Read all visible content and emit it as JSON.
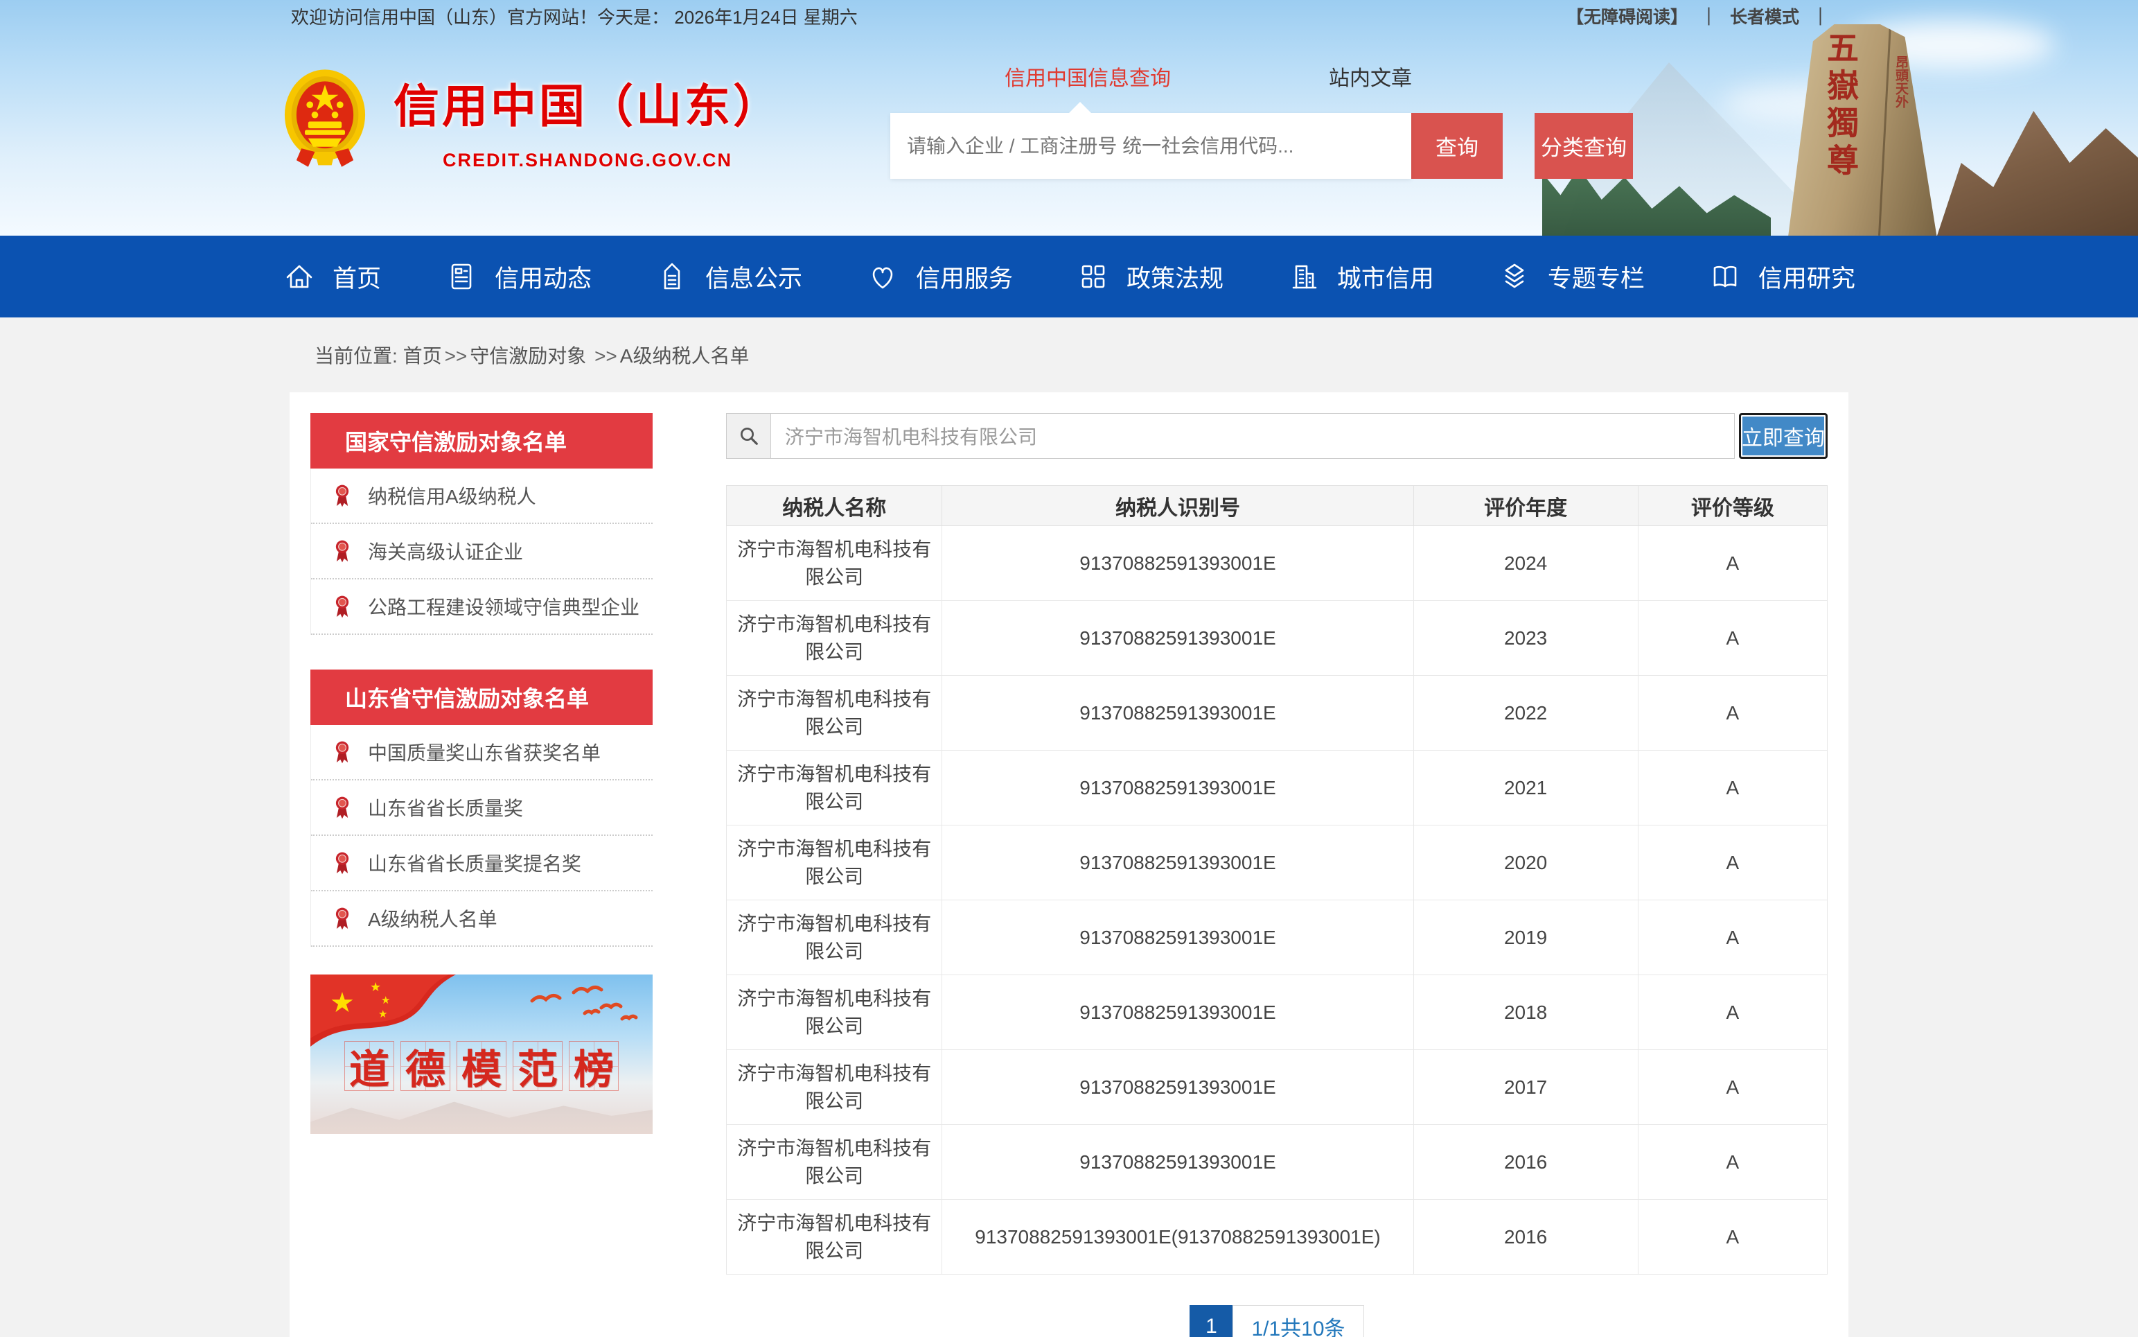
{
  "topbar": {
    "welcome": "欢迎访问信用中国（山东）官方网站！今天是：",
    "date": "2026年1月24日 星期六",
    "accessibility": "【无障碍阅读】",
    "sep1": "｜",
    "elder_mode": "长者模式",
    "sep2": "｜"
  },
  "header": {
    "site_title": "信用中国（山东）",
    "site_domain": "CREDIT.SHANDONG.GOV.CN",
    "tabs": [
      {
        "label": "信用中国信息查询",
        "active": true
      },
      {
        "label": "站内文章",
        "active": false
      }
    ],
    "search_placeholder": "请输入企业 / 工商注册号 统一社会信用代码...",
    "query_button": "查询",
    "classify_button": "分类查询",
    "stone_text": "五嶽獨尊",
    "stone_text_small": "昂頭天外"
  },
  "nav": {
    "items": [
      {
        "key": "home",
        "label": "首页",
        "icon": "home-icon"
      },
      {
        "key": "credit-news",
        "label": "信用动态",
        "icon": "news-card-icon"
      },
      {
        "key": "info-publicity",
        "label": "信息公示",
        "icon": "document-pen-icon"
      },
      {
        "key": "credit-service",
        "label": "信用服务",
        "icon": "heart-icon"
      },
      {
        "key": "policy",
        "label": "政策法规",
        "icon": "grid-icon"
      },
      {
        "key": "city-credit",
        "label": "城市信用",
        "icon": "building-icon"
      },
      {
        "key": "special-columns",
        "label": "专题专栏",
        "icon": "layers-icon"
      },
      {
        "key": "credit-research",
        "label": "信用研究",
        "icon": "open-book-icon"
      }
    ]
  },
  "breadcrumb": {
    "prefix": "当前位置:",
    "home": "首页",
    "sep1": ">>",
    "section": "守信激励对象",
    "sep2": " >>",
    "current": "A级纳税人名单"
  },
  "sidebar": {
    "panels": [
      {
        "title": "国家守信激励对象名单",
        "items": [
          "纳税信用A级纳税人",
          "海关高级认证企业",
          "公路工程建设领域守信典型企业"
        ]
      },
      {
        "title": "山东省守信激励对象名单",
        "items": [
          "中国质量奖山东省获奖名单",
          "山东省省长质量奖",
          "山东省省长质量奖提名奖",
          "A级纳税人名单"
        ]
      }
    ],
    "banner_text": "道德模范榜"
  },
  "main": {
    "search_value": "济宁市海智机电科技有限公司",
    "search_button": "立即查询",
    "table": {
      "headers": [
        "纳税人名称",
        "纳税人识别号",
        "评价年度",
        "评价等级"
      ],
      "rows": [
        [
          "济宁市海智机电科技有限公司",
          "91370882591393001E",
          "2024",
          "A"
        ],
        [
          "济宁市海智机电科技有限公司",
          "91370882591393001E",
          "2023",
          "A"
        ],
        [
          "济宁市海智机电科技有限公司",
          "91370882591393001E",
          "2022",
          "A"
        ],
        [
          "济宁市海智机电科技有限公司",
          "91370882591393001E",
          "2021",
          "A"
        ],
        [
          "济宁市海智机电科技有限公司",
          "91370882591393001E",
          "2020",
          "A"
        ],
        [
          "济宁市海智机电科技有限公司",
          "91370882591393001E",
          "2019",
          "A"
        ],
        [
          "济宁市海智机电科技有限公司",
          "91370882591393001E",
          "2018",
          "A"
        ],
        [
          "济宁市海智机电科技有限公司",
          "91370882591393001E",
          "2017",
          "A"
        ],
        [
          "济宁市海智机电科技有限公司",
          "91370882591393001E",
          "2016",
          "A"
        ],
        [
          "济宁市海智机电科技有限公司",
          "91370882591393001E(91370882591393001E)",
          "2016",
          "A"
        ]
      ]
    },
    "pagination": {
      "current": "1",
      "info": "1/1共10条"
    }
  },
  "colors": {
    "nav_blue": "#0b52b1",
    "panel_red": "#e23b41",
    "brand_red": "#e00000",
    "button_red": "#d9534f",
    "query_blue": "#4289c7",
    "pager_blue": "#155ba7"
  }
}
